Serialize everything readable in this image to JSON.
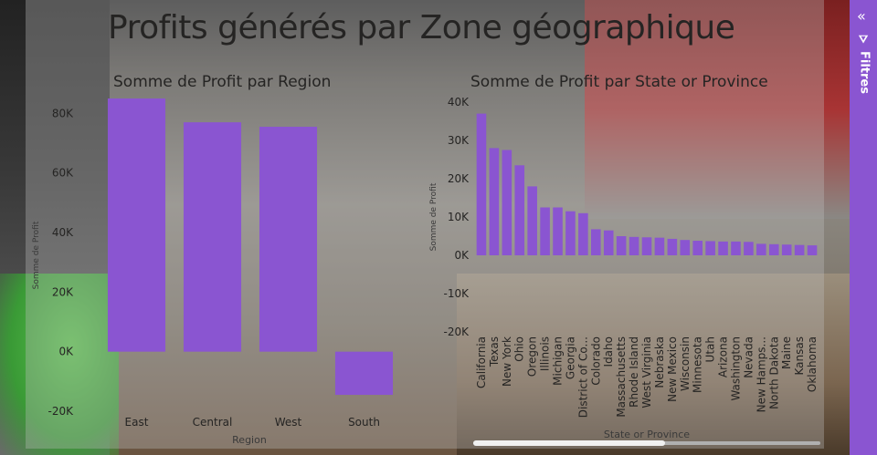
{
  "page": {
    "title": "Profits générés par Zone géographique"
  },
  "filters_pane": {
    "label": "Filtres",
    "collapse_icon": "double-chevron-left-icon",
    "filter_icon": "funnel-icon",
    "color": "#8a55d1"
  },
  "colors": {
    "bar": "#8a55d1"
  },
  "chart_data": [
    {
      "type": "bar",
      "title": "Somme de Profit par Region",
      "xlabel": "Region",
      "ylabel": "Somme de Profit",
      "categories": [
        "East",
        "Central",
        "West",
        "South"
      ],
      "values": [
        85000,
        77000,
        75500,
        -14500
      ],
      "ylim": [
        -20000,
        85000
      ],
      "yticks": [
        -20000,
        0,
        20000,
        40000,
        60000,
        80000
      ],
      "ytick_labels": [
        "-20K",
        "0K",
        "20K",
        "40K",
        "60K",
        "80K"
      ]
    },
    {
      "type": "bar",
      "title": "Somme de Profit par State or Province",
      "xlabel": "State or Province",
      "ylabel": "Somme de Profit",
      "categories": [
        "California",
        "Texas",
        "New York",
        "Ohio",
        "Oregon",
        "Illinois",
        "Michigan",
        "Georgia",
        "District of Co...",
        "Colorado",
        "Idaho",
        "Massachusetts",
        "Rhode Island",
        "West Virginia",
        "Nebraska",
        "New Mexico",
        "Wisconsin",
        "Minnesota",
        "Utah",
        "Arizona",
        "Washington",
        "Nevada",
        "New Hamps...",
        "North Dakota",
        "Maine",
        "Kansas",
        "Oklahoma"
      ],
      "values": [
        37000,
        28000,
        27500,
        23500,
        18000,
        12500,
        12500,
        11500,
        11000,
        6800,
        6500,
        5000,
        4800,
        4700,
        4600,
        4300,
        4000,
        3800,
        3700,
        3600,
        3600,
        3500,
        3000,
        2900,
        2800,
        2700,
        2600
      ],
      "ylim": [
        -20000,
        40000
      ],
      "yticks": [
        -20000,
        -10000,
        0,
        10000,
        20000,
        30000,
        40000
      ],
      "ytick_labels": [
        "-20K",
        "-10K",
        "0K",
        "10K",
        "20K",
        "30K",
        "40K"
      ]
    }
  ]
}
